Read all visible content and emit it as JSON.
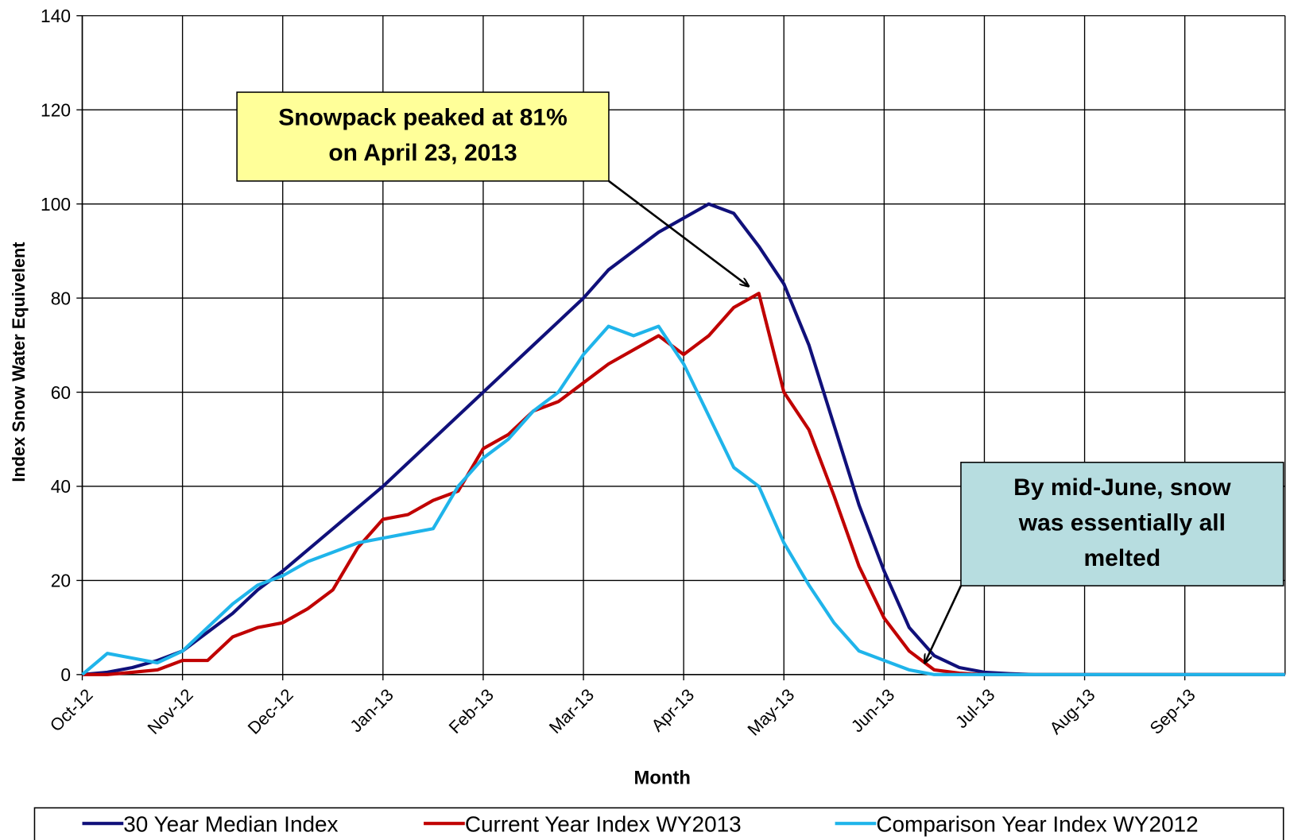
{
  "chart_data": {
    "type": "line",
    "x_label": "Month",
    "y_label": "Index Snow Water  Equivelent",
    "xlim": [
      0,
      12
    ],
    "xticks": [
      {
        "value": 0,
        "label": "Oct-12"
      },
      {
        "value": 1,
        "label": "Nov-12"
      },
      {
        "value": 2,
        "label": "Dec-12"
      },
      {
        "value": 3,
        "label": "Jan-13"
      },
      {
        "value": 4,
        "label": "Feb-13"
      },
      {
        "value": 5,
        "label": "Mar-13"
      },
      {
        "value": 6,
        "label": "Apr-13"
      },
      {
        "value": 7,
        "label": "May-13"
      },
      {
        "value": 8,
        "label": "Jun-13"
      },
      {
        "value": 9,
        "label": "Jul-13"
      },
      {
        "value": 10,
        "label": "Aug-13"
      },
      {
        "value": 11,
        "label": "Sep-13"
      }
    ],
    "ylim": [
      0,
      140
    ],
    "yticks": [
      0,
      20,
      40,
      60,
      80,
      100,
      120,
      140
    ],
    "grid": true,
    "legend": "bottom",
    "x": [
      0,
      0.25,
      0.5,
      0.75,
      1,
      1.25,
      1.5,
      1.75,
      2,
      2.25,
      2.5,
      2.75,
      3,
      3.25,
      3.5,
      3.75,
      4,
      4.25,
      4.5,
      4.75,
      5,
      5.25,
      5.5,
      5.75,
      6,
      6.25,
      6.5,
      6.75,
      7,
      7.25,
      7.5,
      7.75,
      8,
      8.25,
      8.5,
      8.75,
      9,
      9.25,
      9.5,
      9.75,
      10,
      10.25,
      10.5,
      10.75,
      11,
      11.25,
      11.5,
      11.75,
      12
    ],
    "series": [
      {
        "name": "30 Year Median Index",
        "color": "#10107a",
        "values": [
          0,
          0.5,
          1.5,
          3,
          5,
          9,
          13,
          18,
          22,
          26.5,
          31,
          35.5,
          40,
          45,
          50,
          55,
          60,
          65,
          70,
          75,
          80,
          86,
          90,
          94,
          97,
          100,
          98,
          91,
          83,
          70,
          53,
          36,
          22,
          10,
          4,
          1.5,
          0.5,
          0.2,
          0,
          0,
          0,
          0,
          0,
          0,
          0,
          0,
          0,
          0,
          0
        ]
      },
      {
        "name": "Current Year Index WY2013",
        "color": "#c00000",
        "values": [
          0,
          0,
          0.5,
          1,
          3,
          3,
          8,
          10,
          11,
          14,
          18,
          27,
          33,
          34,
          37,
          39,
          48,
          51,
          56,
          58,
          62,
          66,
          69,
          72,
          68,
          72,
          78,
          81,
          60,
          52,
          38,
          23,
          12,
          5,
          1,
          0.3,
          0,
          0,
          0,
          0,
          0,
          0,
          0,
          0,
          0,
          0,
          0,
          0,
          0
        ]
      },
      {
        "name": "Comparison Year Index WY2012",
        "color": "#1fb4ea",
        "values": [
          0,
          4.5,
          3.5,
          2.5,
          5,
          10,
          15,
          19,
          21,
          24,
          26,
          28,
          29,
          30,
          31,
          40,
          46,
          50,
          56,
          60,
          68,
          74,
          72,
          74,
          66,
          55,
          44,
          40,
          28,
          19,
          11,
          5,
          3,
          1,
          0,
          0,
          0,
          0,
          0,
          0,
          0,
          0,
          0,
          0,
          0,
          0,
          0,
          0,
          0
        ]
      }
    ],
    "annotations": [
      {
        "lines": [
          "Snowpack peaked at 81%",
          "on April 23, 2013"
        ],
        "color": "#ffff99"
      },
      {
        "lines": [
          "By mid-June, snow",
          "was essentially all",
          "melted"
        ],
        "color": "#b7dde0"
      }
    ]
  }
}
